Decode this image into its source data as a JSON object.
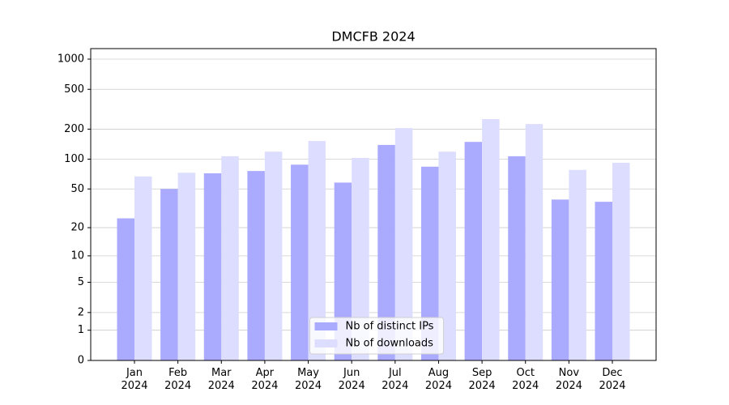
{
  "chart_data": {
    "type": "bar",
    "title": "DMCFB 2024",
    "categories": [
      "Jan\n2024",
      "Feb\n2024",
      "Mar\n2024",
      "Apr\n2024",
      "May\n2024",
      "Jun\n2024",
      "Jul\n2024",
      "Aug\n2024",
      "Sep\n2024",
      "Oct\n2024",
      "Nov\n2024",
      "Dec\n2024"
    ],
    "series": [
      {
        "name": "Nb of distinct IPs",
        "color": "#aaaaff",
        "values": [
          25,
          50,
          72,
          76,
          88,
          58,
          139,
          84,
          149,
          107,
          39,
          37
        ]
      },
      {
        "name": "Nb of downloads",
        "color": "#ddddff",
        "values": [
          67,
          73,
          107,
          119,
          152,
          103,
          205,
          119,
          252,
          225,
          78,
          92
        ]
      }
    ],
    "scale": "log1p",
    "ylim": [
      0,
      1273
    ],
    "yticks": [
      0,
      1,
      2,
      5,
      10,
      20,
      50,
      100,
      200,
      500,
      1000
    ],
    "grid": true,
    "legend": "lower center"
  }
}
